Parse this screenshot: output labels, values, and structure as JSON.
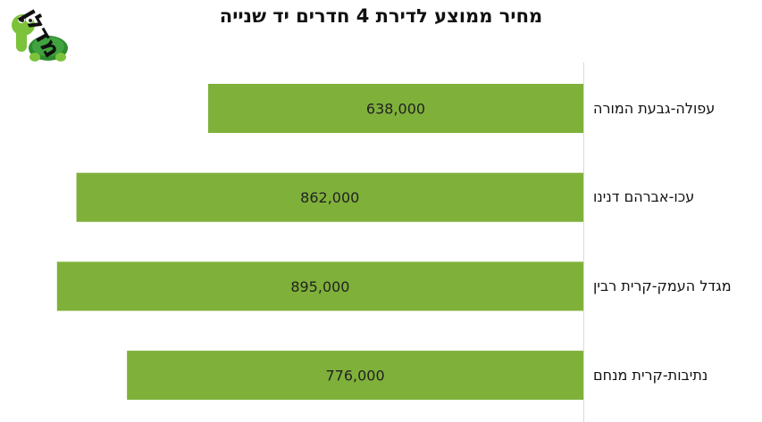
{
  "logo_text": "מדלן",
  "chart_data": {
    "type": "bar",
    "orientation": "horizontal",
    "title": "מחיר ממוצע לדירת 4 חדרים יד שנייה",
    "categories": [
      "עפולה-גבעת המורה",
      "עכו-אברהם דנינו",
      "מגדל העמק-קרית רבין",
      "נתיבות-קרית מנחם"
    ],
    "values": [
      638000,
      862000,
      895000,
      776000
    ],
    "data_labels": [
      "638,000",
      "862,000",
      "895,000",
      "776,000"
    ],
    "bar_color": "#7fb13a",
    "bars_direction": "right-to-left",
    "grid": false,
    "legend": "none",
    "xlim": [
      0,
      990000
    ]
  }
}
